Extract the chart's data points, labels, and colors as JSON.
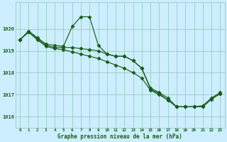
{
  "xlabel": "Graphe pression niveau de la mer (hPa)",
  "background_color": "#cceeff",
  "grid_color": "#99ccbb",
  "line_color": "#1a5c1a",
  "ylim": [
    1015.5,
    1021.2
  ],
  "y_ticks": [
    1016,
    1017,
    1018,
    1019,
    1020
  ],
  "x_ticks": [
    0,
    1,
    2,
    3,
    4,
    5,
    6,
    7,
    8,
    9,
    10,
    11,
    12,
    13,
    14,
    15,
    16,
    17,
    18,
    19,
    20,
    21,
    22,
    23
  ],
  "line1_x": [
    0,
    1,
    2,
    3,
    4,
    5,
    6,
    7,
    8,
    9,
    10,
    11,
    12,
    13,
    14,
    15,
    16,
    17,
    18,
    19,
    20,
    21,
    22,
    23
  ],
  "line1_y": [
    1019.5,
    1019.9,
    1019.6,
    1019.3,
    1019.25,
    1019.2,
    1020.1,
    1020.55,
    1020.55,
    1019.25,
    1018.85,
    1018.75,
    1018.75,
    1018.55,
    1018.2,
    1017.3,
    1017.1,
    1016.85,
    1016.45,
    1016.45,
    1016.45,
    1016.5,
    1016.85,
    1017.1
  ],
  "line2_x": [
    0,
    1,
    2,
    3,
    4,
    5,
    6,
    7,
    8,
    9,
    10,
    11,
    12,
    13,
    14,
    15,
    16,
    17,
    18,
    19,
    20,
    21,
    22,
    23
  ],
  "line2_y": [
    1019.5,
    1019.85,
    1019.55,
    1019.25,
    1019.15,
    1019.15,
    1019.15,
    1019.1,
    1019.05,
    1019.0,
    1018.85,
    1018.75,
    1018.75,
    1018.55,
    1018.2,
    1017.25,
    1017.05,
    1016.75,
    1016.45,
    1016.45,
    1016.45,
    1016.45,
    1016.8,
    1017.05
  ],
  "line3_x": [
    0,
    1,
    2,
    3,
    4,
    5,
    6,
    7,
    8,
    9,
    10,
    11,
    12,
    13,
    14,
    15,
    16,
    17,
    18,
    19,
    20,
    21,
    22,
    23
  ],
  "line3_y": [
    1019.5,
    1019.85,
    1019.5,
    1019.2,
    1019.1,
    1019.05,
    1018.95,
    1018.85,
    1018.75,
    1018.65,
    1018.5,
    1018.35,
    1018.2,
    1018.0,
    1017.75,
    1017.2,
    1017.0,
    1016.75,
    1016.45,
    1016.45,
    1016.45,
    1016.45,
    1016.8,
    1017.05
  ]
}
